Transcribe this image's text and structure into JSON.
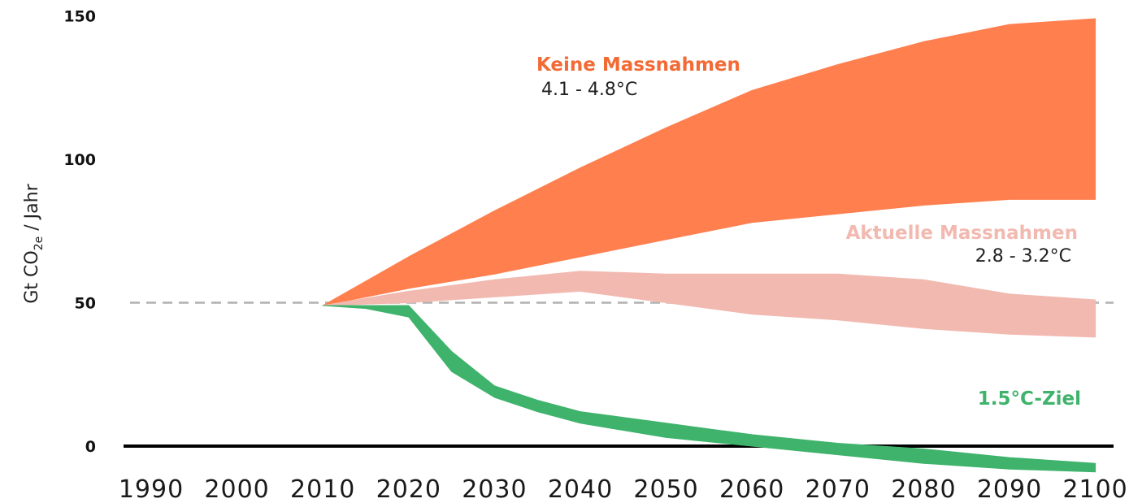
{
  "chart_data": {
    "type": "area",
    "xlabel": "",
    "ylabel_parts": [
      "Gt CO",
      "2e",
      " / Jahr"
    ],
    "xlim": [
      1987,
      2103
    ],
    "ylim": [
      0,
      150
    ],
    "x_ticks": [
      "1990",
      "2000",
      "2010",
      "2020",
      "2030",
      "2040",
      "2050",
      "2060",
      "2070",
      "2080",
      "2090",
      "2100"
    ],
    "y_ticks": [
      "0",
      "50",
      "100",
      "150"
    ],
    "reference_lines": [
      {
        "y": 0,
        "style": "solid",
        "color": "#000000"
      },
      {
        "y": 50,
        "style": "dashed",
        "color": "#b0b0b0"
      }
    ],
    "series": [
      {
        "name": "Keine Massnahmen",
        "range_label": "4.1 - 4.8°C",
        "color": "#ff7f4f",
        "label_color": "#f26a35",
        "x": [
          2010,
          2020,
          2030,
          2040,
          2050,
          2060,
          2070,
          2080,
          2090,
          2100
        ],
        "upper": [
          49,
          66,
          82,
          97,
          111,
          124,
          133,
          141,
          147,
          149
        ],
        "lower": [
          49,
          55,
          60,
          66,
          72,
          78,
          81,
          84,
          86,
          86
        ]
      },
      {
        "name": "Aktuelle Massnahmen",
        "range_label": "2.8 - 3.2°C",
        "color": "#f2b9b0",
        "label_color": "#f2b9b0",
        "x": [
          2010,
          2020,
          2030,
          2040,
          2050,
          2060,
          2070,
          2080,
          2090,
          2100
        ],
        "upper": [
          49,
          54,
          58,
          61,
          60,
          60,
          60,
          58,
          53,
          51
        ],
        "lower": [
          49,
          50,
          52,
          54,
          50,
          46,
          44,
          41,
          39,
          38
        ]
      },
      {
        "name": "1.5°C-Ziel",
        "color": "#3fb36c",
        "label_color": "#3fb36c",
        "x": [
          2010,
          2015,
          2020,
          2025,
          2030,
          2035,
          2040,
          2050,
          2060,
          2070,
          2080,
          2090,
          2100
        ],
        "upper": [
          49,
          49,
          49,
          33,
          21,
          16,
          12,
          8,
          4,
          1,
          -1,
          -4,
          -6
        ],
        "lower": [
          49,
          48,
          45,
          26,
          17,
          12,
          8,
          3,
          0,
          -3,
          -6,
          -8,
          -9
        ]
      }
    ]
  }
}
